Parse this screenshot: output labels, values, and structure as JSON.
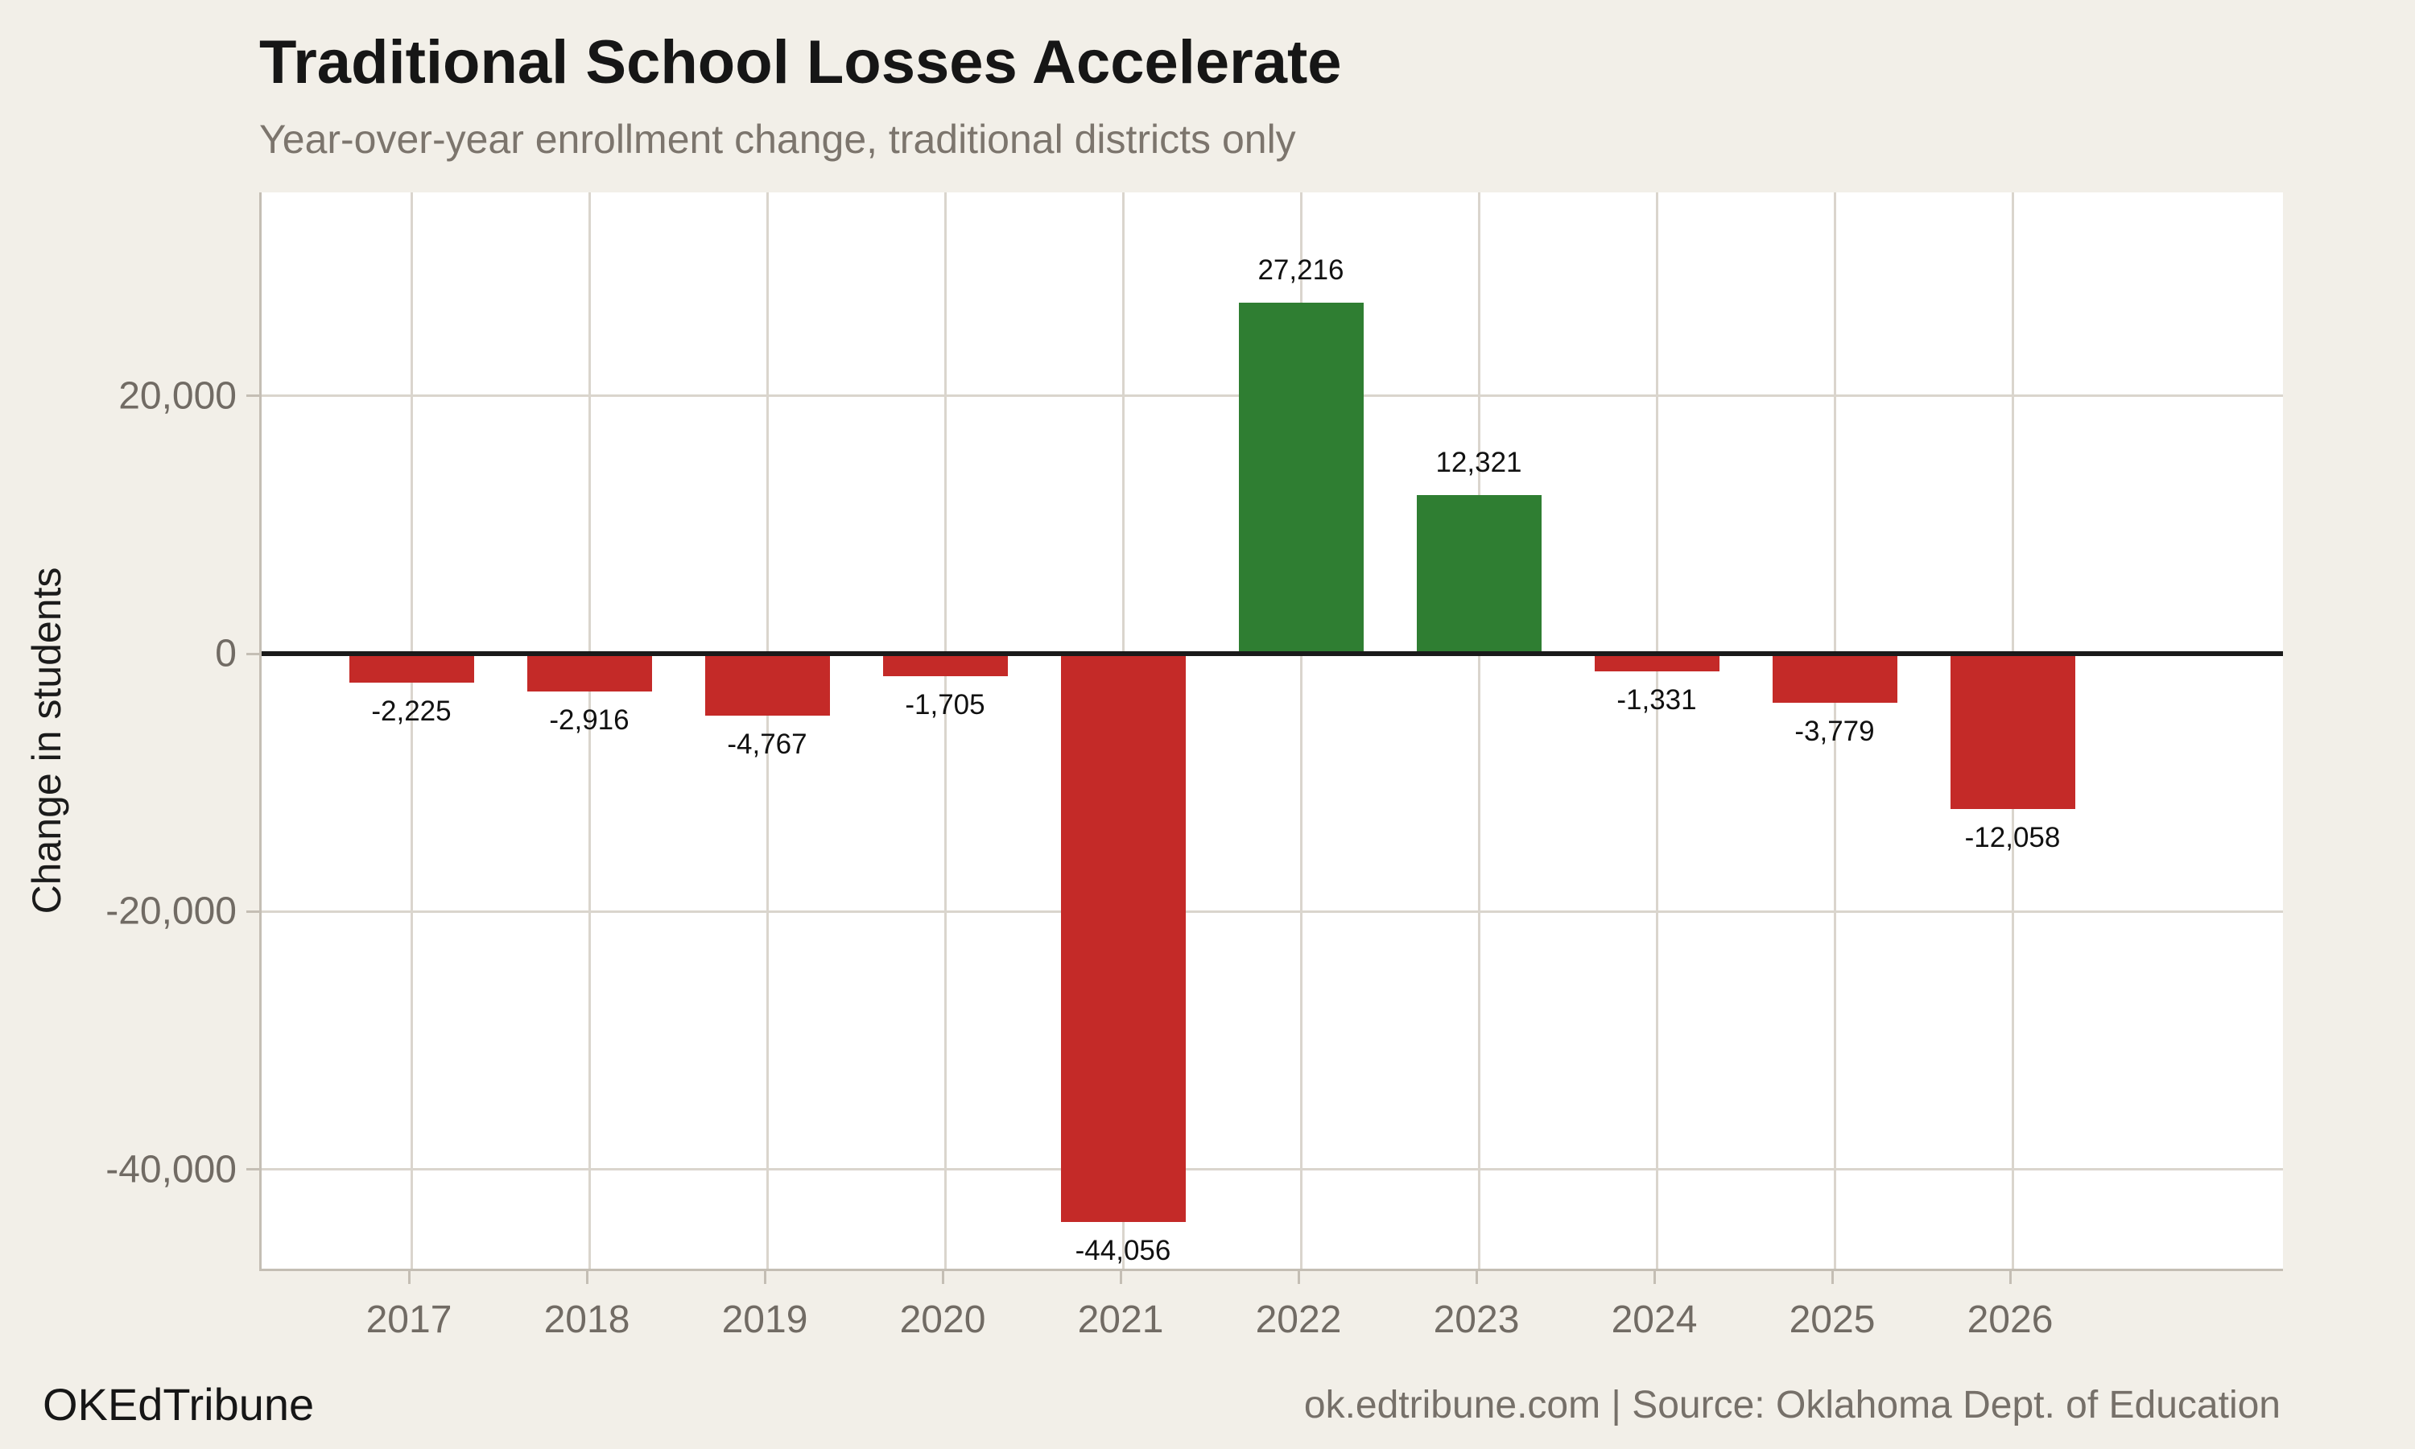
{
  "chart_data": {
    "type": "bar",
    "title": "Traditional School Losses Accelerate",
    "subtitle": "Year-over-year enrollment change, traditional districts only",
    "ylabel": "Change in students",
    "xlabel": "",
    "categories": [
      "2017",
      "2018",
      "2019",
      "2020",
      "2021",
      "2022",
      "2023",
      "2024",
      "2025",
      "2026"
    ],
    "values": [
      -2225,
      -2916,
      -4767,
      -1705,
      -44056,
      27216,
      12321,
      -1331,
      -3779,
      -12058
    ],
    "bar_labels": [
      "-2,225",
      "-2,916",
      "-4,767",
      "-1,705",
      "-44,056",
      "27,216",
      "12,321",
      "-1,331",
      "-3,779",
      "-12,058"
    ],
    "y_ticks": [
      {
        "value": 20000,
        "label": "20,000"
      },
      {
        "value": 0,
        "label": "0"
      },
      {
        "value": -20000,
        "label": "-20,000"
      },
      {
        "value": -40000,
        "label": "-40,000"
      }
    ],
    "ylim": [
      -47700,
      35800
    ],
    "grid": true,
    "legend": "none",
    "colors": {
      "positive": "#2F7E32",
      "negative": "#C42A28",
      "background": "#F2EFE8",
      "panel": "#FFFFFF",
      "gridline": "#DAD5CD",
      "axis_line": "#C4BEB4",
      "zero_line": "#1A1A1A",
      "tick_text": "#716B64",
      "title_text": "#161616",
      "subtitle_text": "#7C756D",
      "value_label_text": "#111111",
      "footer_text": "#767069"
    }
  },
  "footer": {
    "brand": "OKEdTribune",
    "source": "ok.edtribune.com | Source: Oklahoma Dept. of Education"
  }
}
